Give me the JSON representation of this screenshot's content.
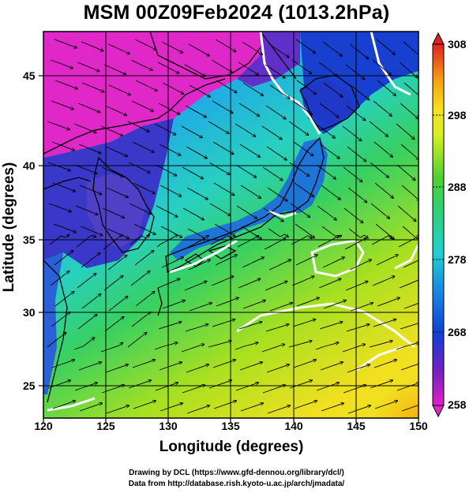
{
  "title": "MSM 00Z09Feb2024 (1013.2hPa)",
  "axes": {
    "xlabel": "Longitude (degrees)",
    "ylabel": "Latitude  (degrees)"
  },
  "credits": {
    "line1": "Drawing by DCL (https://www.gfd-dennou.org/library/dcl/)",
    "line2": "Data from http://database.rish.kyoto-u.ac.jp/arch/jmadata/"
  },
  "chart_data": {
    "type": "heatmap",
    "field": "temperature with wind streamlines",
    "xlim": [
      120,
      150
    ],
    "ylim": [
      22.4,
      47.6
    ],
    "x_ticks": [
      "120",
      "125",
      "130",
      "135",
      "140",
      "145",
      "150"
    ],
    "y_ticks": [
      "25",
      "30",
      "35",
      "40",
      "45"
    ],
    "colorbar": {
      "min": 258,
      "max": 308,
      "ticks": [
        "258",
        "268",
        "278",
        "288",
        "298",
        "308"
      ]
    },
    "grid": true,
    "colors": {
      "magenta": "#e020c8",
      "purple": "#6020c0",
      "blue": "#1048e0",
      "cyan": "#20d0d0",
      "green": "#30d060",
      "yellow": "#e8f020",
      "orange": "#f8a010",
      "red": "#e02020"
    }
  }
}
